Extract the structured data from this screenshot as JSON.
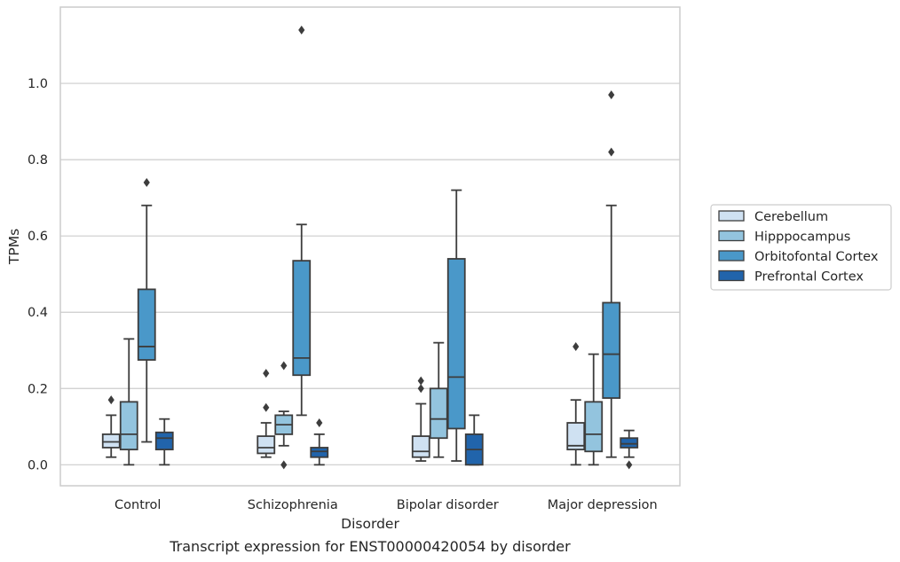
{
  "caption": "Transcript expression for ENST00000420054 by disorder",
  "colors": {
    "Cerebellum": "#cfe1f2",
    "Hipppocampus": "#93c4de",
    "Orbitofontal Cortex": "#4a98c9",
    "Prefrontal Cortex": "#2164ab",
    "grid": "#cccccc",
    "frame": "#cccccc",
    "line": "#3d3d3d"
  },
  "chart_data": {
    "type": "box",
    "xlabel": "Disorder",
    "ylabel": "TPMs",
    "ylim": [
      -0.055,
      1.2
    ],
    "yticks": [
      0.0,
      0.2,
      0.4,
      0.6,
      0.8,
      1.0
    ],
    "ytick_labels": [
      "0.0",
      "0.2",
      "0.4",
      "0.6",
      "0.8",
      "1.0"
    ],
    "grid": "horizontal",
    "legend_position": "right",
    "categories": [
      "Control",
      "Schizophrenia",
      "Bipolar disorder",
      "Major depression"
    ],
    "series": [
      {
        "name": "Cerebellum",
        "boxes": [
          {
            "whislo": 0.02,
            "q1": 0.045,
            "med": 0.06,
            "q3": 0.08,
            "whishi": 0.13,
            "fliers": [
              0.17
            ]
          },
          {
            "whislo": 0.02,
            "q1": 0.03,
            "med": 0.045,
            "q3": 0.075,
            "whishi": 0.11,
            "fliers": [
              0.24,
              0.15
            ]
          },
          {
            "whislo": 0.01,
            "q1": 0.02,
            "med": 0.035,
            "q3": 0.075,
            "whishi": 0.16,
            "fliers": [
              0.22,
              0.2
            ]
          },
          {
            "whislo": 0.0,
            "q1": 0.04,
            "med": 0.05,
            "q3": 0.11,
            "whishi": 0.17,
            "fliers": [
              0.31
            ]
          }
        ]
      },
      {
        "name": "Hipppocampus",
        "boxes": [
          {
            "whislo": 0.0,
            "q1": 0.04,
            "med": 0.08,
            "q3": 0.165,
            "whishi": 0.33,
            "fliers": []
          },
          {
            "whislo": 0.05,
            "q1": 0.08,
            "med": 0.105,
            "q3": 0.13,
            "whishi": 0.14,
            "fliers": [
              0.0,
              0.26
            ]
          },
          {
            "whislo": 0.02,
            "q1": 0.07,
            "med": 0.12,
            "q3": 0.2,
            "whishi": 0.32,
            "fliers": []
          },
          {
            "whislo": 0.0,
            "q1": 0.035,
            "med": 0.08,
            "q3": 0.165,
            "whishi": 0.29,
            "fliers": []
          }
        ]
      },
      {
        "name": "Orbitofontal Cortex",
        "boxes": [
          {
            "whislo": 0.06,
            "q1": 0.275,
            "med": 0.31,
            "q3": 0.46,
            "whishi": 0.68,
            "fliers": [
              0.74
            ]
          },
          {
            "whislo": 0.13,
            "q1": 0.235,
            "med": 0.28,
            "q3": 0.535,
            "whishi": 0.63,
            "fliers": [
              1.14
            ]
          },
          {
            "whislo": 0.01,
            "q1": 0.095,
            "med": 0.23,
            "q3": 0.54,
            "whishi": 0.72,
            "fliers": []
          },
          {
            "whislo": 0.02,
            "q1": 0.175,
            "med": 0.29,
            "q3": 0.425,
            "whishi": 0.68,
            "fliers": [
              0.97,
              0.82
            ]
          }
        ]
      },
      {
        "name": "Prefrontal Cortex",
        "boxes": [
          {
            "whislo": 0.0,
            "q1": 0.04,
            "med": 0.07,
            "q3": 0.085,
            "whishi": 0.12,
            "fliers": []
          },
          {
            "whislo": 0.0,
            "q1": 0.02,
            "med": 0.035,
            "q3": 0.045,
            "whishi": 0.08,
            "fliers": [
              0.11
            ]
          },
          {
            "whislo": 0.0,
            "q1": 0.0,
            "med": 0.04,
            "q3": 0.08,
            "whishi": 0.13,
            "fliers": []
          },
          {
            "whislo": 0.02,
            "q1": 0.045,
            "med": 0.055,
            "q3": 0.07,
            "whishi": 0.09,
            "fliers": [
              0.0
            ]
          }
        ]
      }
    ]
  }
}
